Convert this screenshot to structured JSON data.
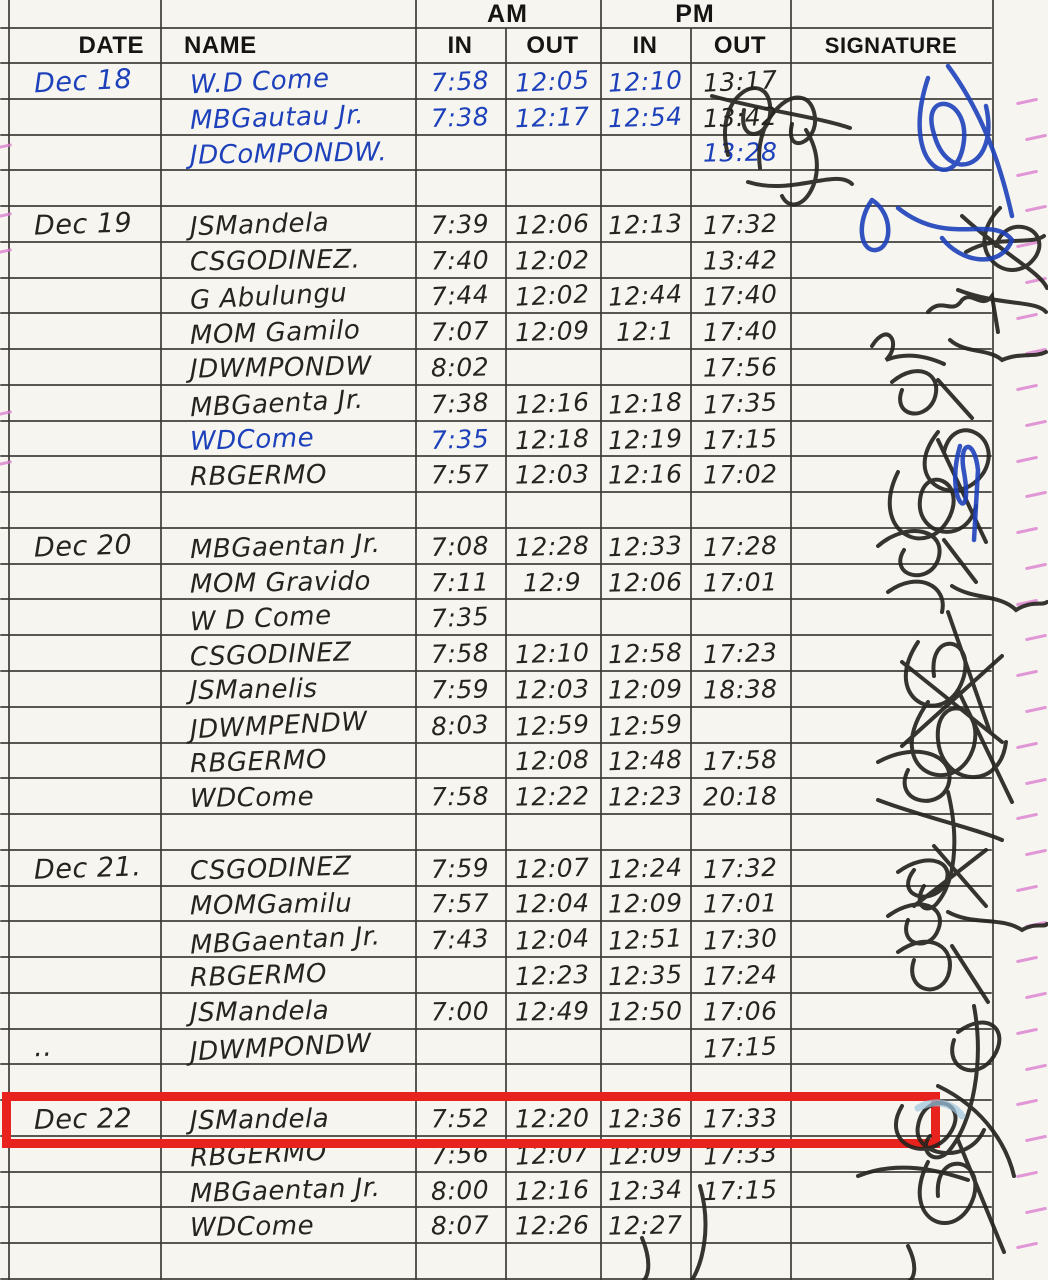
{
  "sheet": {
    "group_headers": [
      "AM",
      "PM"
    ],
    "columns": [
      "DATE",
      "NAME",
      "IN",
      "OUT",
      "IN",
      "OUT",
      "SIGNATURE"
    ]
  },
  "colors": {
    "ink_black": "#26241f",
    "ink_blue": "#1d41bb",
    "highlight_red": "#e8231d",
    "margin_pink": "#db7fd0",
    "grid_line": "#3d3b38",
    "paper": "#f7f5ef"
  },
  "highlight": {
    "row_index": 29
  },
  "rows": [
    {
      "d": "Dec 18",
      "n": "W.D Come",
      "ai": "7:58",
      "ao": "12:05",
      "pi": "12:10",
      "po": "13:17",
      "ink": "blue",
      "po_ink": "black"
    },
    {
      "n": "MBGautau Jr.",
      "ai": "7:38",
      "ao": "12:17",
      "pi": "12:54",
      "po": "13:42",
      "ink": "blue",
      "po_ink": "black"
    },
    {
      "n": "JDCoMPONDW.",
      "po": "13:28",
      "ink": "blue"
    },
    {},
    {
      "d": "Dec 19",
      "n": "JSMandela",
      "ai": "7:39",
      "ao": "12:06",
      "pi": "12:13",
      "po": "17:32"
    },
    {
      "n": "CSGODINEZ.",
      "ai": "7:40",
      "ao": "12:02",
      "po": "13:42"
    },
    {
      "n": "G Abulungu",
      "ai": "7:44",
      "ao": "12:02",
      "pi": "12:44",
      "po": "17:40"
    },
    {
      "n": "MOM Gamilo",
      "ai": "7:07",
      "ao": "12:09",
      "pi": "12:1",
      "po": "17:40"
    },
    {
      "n": "JDWMPONDW",
      "ai": "8:02",
      "po": "17:56"
    },
    {
      "n": "MBGaenta Jr.",
      "ai": "7:38",
      "ao": "12:16",
      "pi": "12:18",
      "po": "17:35"
    },
    {
      "n": "WDCome",
      "ai": "7:35",
      "ao": "12:18",
      "pi": "12:19",
      "po": "17:15",
      "n_ink": "blue",
      "ai_ink": "blue"
    },
    {
      "n": "RBGERMO",
      "ai": "7:57",
      "ao": "12:03",
      "pi": "12:16",
      "po": "17:02"
    },
    {},
    {
      "d": "Dec 20",
      "n": "MBGaentan Jr.",
      "ai": "7:08",
      "ao": "12:28",
      "pi": "12:33",
      "po": "17:28"
    },
    {
      "n": "MOM Gravido",
      "ai": "7:11",
      "ao": "12:9",
      "pi": "12:06",
      "po": "17:01"
    },
    {
      "n": "W D Come",
      "ai": "7:35"
    },
    {
      "n": "CSGODINEZ",
      "ai": "7:58",
      "ao": "12:10",
      "pi": "12:58",
      "po": "17:23"
    },
    {
      "n": "JSManelis",
      "ai": "7:59",
      "ao": "12:03",
      "pi": "12:09",
      "po": "18:38"
    },
    {
      "n": "JDWMPENDW",
      "ai": "8:03",
      "ao": "12:59",
      "pi": "12:59"
    },
    {
      "n": "RBGERMO",
      "ao": "12:08",
      "pi": "12:48",
      "po": "17:58"
    },
    {
      "n": "WDCome",
      "ai": "7:58",
      "ao": "12:22",
      "pi": "12:23",
      "po": "20:18"
    },
    {},
    {
      "d": "Dec 21.",
      "n": "CSGODINEZ",
      "ai": "7:59",
      "ao": "12:07",
      "pi": "12:24",
      "po": "17:32"
    },
    {
      "n": "MOMGamilu",
      "ai": "7:57",
      "ao": "12:04",
      "pi": "12:09",
      "po": "17:01"
    },
    {
      "n": "MBGaentan Jr.",
      "ai": "7:43",
      "ao": "12:04",
      "pi": "12:51",
      "po": "17:30"
    },
    {
      "n": "RBGERMO",
      "ao": "12:23",
      "pi": "12:35",
      "po": "17:24"
    },
    {
      "n": "JSMandela",
      "ai": "7:00",
      "ao": "12:49",
      "pi": "12:50",
      "po": "17:06"
    },
    {
      "d": "..",
      "n": "JDWMPONDW",
      "po": "17:15"
    },
    {},
    {
      "d": "Dec 22",
      "n": "JSMandela",
      "ai": "7:52",
      "ao": "12:20",
      "pi": "12:36",
      "po": "17:33",
      "highlighted": true
    },
    {
      "n": "RBGERMO",
      "ai": "7:56",
      "ao": "12:07",
      "pi": "12:09",
      "po": "17:33"
    },
    {
      "n": "MBGaentan Jr.",
      "ai": "8:00",
      "ao": "12:16",
      "pi": "12:34",
      "po": "17:15"
    },
    {
      "n": "WDCome",
      "ai": "8:07",
      "ao": "12:26",
      "pi": "12:27"
    },
    {}
  ]
}
